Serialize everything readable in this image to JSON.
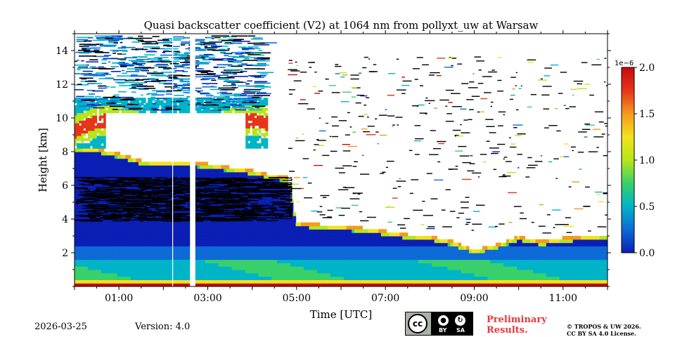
{
  "chart_data": {
    "type": "heatmap",
    "title": "Quasi backscatter coefficient (V2) at 1064 nm from pollyxt_uw at Warsaw",
    "xlabel": "Time [UTC]",
    "ylabel": "Height [km]",
    "xlim_hours": [
      0,
      12
    ],
    "ylim_km": [
      0,
      15
    ],
    "x_ticks": [
      {
        "value": 1,
        "label": "01:00"
      },
      {
        "value": 3,
        "label": "03:00"
      },
      {
        "value": 5,
        "label": "05:00"
      },
      {
        "value": 7,
        "label": "07:00"
      },
      {
        "value": 9,
        "label": "09:00"
      },
      {
        "value": 11,
        "label": "11:00"
      }
    ],
    "y_ticks": [
      {
        "value": 2,
        "label": "2"
      },
      {
        "value": 4,
        "label": "4"
      },
      {
        "value": 6,
        "label": "6"
      },
      {
        "value": 8,
        "label": "8"
      },
      {
        "value": 10,
        "label": "10"
      },
      {
        "value": 12,
        "label": "12"
      },
      {
        "value": 14,
        "label": "14"
      }
    ],
    "colorbar": {
      "min": 0.0,
      "max": 2.0,
      "scale_label": "1e−6",
      "ticks": [
        {
          "value": 0.0,
          "label": "0.0"
        },
        {
          "value": 0.5,
          "label": "0.5"
        },
        {
          "value": 1.0,
          "label": "1.0"
        },
        {
          "value": 1.5,
          "label": "1.5"
        },
        {
          "value": 2.0,
          "label": "2.0"
        }
      ],
      "colormap": [
        "#0a1fb5",
        "#0d6ad6",
        "#00b4c8",
        "#39d06a",
        "#b6e61a",
        "#f2e21c",
        "#f59a1c",
        "#e6341a",
        "#c80b0b"
      ]
    },
    "cloud_top_profile": {
      "time_hours": [
        0.0,
        0.5,
        1.0,
        1.5,
        2.0,
        2.5,
        3.0,
        3.5,
        4.0,
        4.5,
        4.8,
        5.0,
        6.0,
        6.5,
        7.0,
        7.5,
        8.0,
        8.5,
        9.0,
        9.5,
        10.0,
        10.5,
        11.0,
        11.5,
        12.0
      ],
      "height_km": [
        8.3,
        8.2,
        7.9,
        7.5,
        7.4,
        7.4,
        7.3,
        7.1,
        6.9,
        6.6,
        6.5,
        3.8,
        3.6,
        3.5,
        3.3,
        3.1,
        3.0,
        2.7,
        2.2,
        2.5,
        3.0,
        2.7,
        2.9,
        3.0,
        3.1
      ]
    },
    "dropout_hours": [
      2.6,
      2.72
    ],
    "dropout_line_hours": 2.2
  },
  "footer": {
    "date": "2026-03-25",
    "version": "Version: 4.0",
    "license_cc": "cc",
    "license_by": "BY",
    "license_sa": "SA",
    "preliminary_line1": "Preliminary",
    "preliminary_line2": "Results.",
    "copyright_line1": "© TROPOS & UW 2026.",
    "copyright_line2": "CC BY SA 4.0 License."
  }
}
